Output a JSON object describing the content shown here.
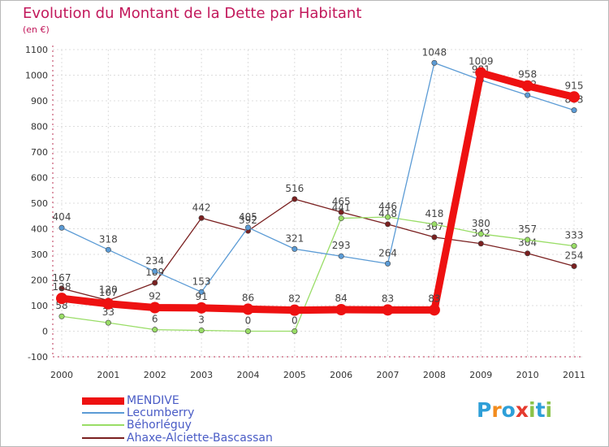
{
  "title": "Evolution du Montant de la Dette par Habitant",
  "unit": "(en €)",
  "logo": {
    "letters": [
      "P",
      "r",
      "o",
      "x",
      "i",
      "t",
      "i"
    ],
    "colors": [
      "#2e9fd8",
      "#f28c1e",
      "#2e9fd8",
      "#e53a2e",
      "#8bc34a",
      "#2e9fd8",
      "#8bc34a"
    ]
  },
  "chart_data": {
    "type": "line",
    "title": "Evolution du Montant de la Dette par Habitant",
    "ylabel": "(en €)",
    "categories": [
      "2000",
      "2001",
      "2002",
      "2003",
      "2004",
      "2005",
      "2006",
      "2007",
      "2008",
      "2009",
      "2010",
      "2011"
    ],
    "ylim": [
      -100,
      1100
    ],
    "yticks": [
      -100,
      0,
      100,
      200,
      300,
      400,
      500,
      600,
      700,
      800,
      900,
      1000,
      1100
    ],
    "grid": true,
    "legend_position": "bottom-left",
    "series": [
      {
        "name": "MENDIVE",
        "color": "#ee1111",
        "values": [
          128,
          107,
          92,
          91,
          86,
          82,
          84,
          83,
          83,
          1009,
          958,
          915
        ],
        "labels": [
          "128",
          "107",
          "92",
          "91",
          "86",
          "82",
          "84",
          "83",
          "83",
          "1009",
          "958",
          "915"
        ]
      },
      {
        "name": "Lecumberry",
        "color": "#5b9bd5",
        "values": [
          404,
          318,
          234,
          153,
          405,
          321,
          293,
          264,
          1048,
          981,
          922,
          863
        ],
        "labels": [
          "404",
          "318",
          "234",
          "153",
          "405",
          "321",
          "293",
          "264",
          "1048",
          "981",
          "922",
          "863"
        ]
      },
      {
        "name": "Béhorléguy",
        "color": "#99dd66",
        "values": [
          58,
          33,
          6,
          3,
          0,
          0,
          441,
          446,
          418,
          380,
          357,
          333
        ],
        "labels": [
          "58",
          "33",
          "6",
          "3",
          "0",
          "0",
          "441",
          "446",
          "418",
          "380",
          "357",
          "333"
        ]
      },
      {
        "name": "Ahaxe-Alciette-Bascassan",
        "color": "#7a2020",
        "values": [
          167,
          120,
          189,
          442,
          392,
          516,
          465,
          418,
          367,
          342,
          304,
          254
        ],
        "labels": [
          "167",
          "120",
          "189",
          "442",
          "392",
          "516",
          "465",
          "418",
          "367",
          "342",
          "304",
          "254"
        ]
      }
    ]
  }
}
